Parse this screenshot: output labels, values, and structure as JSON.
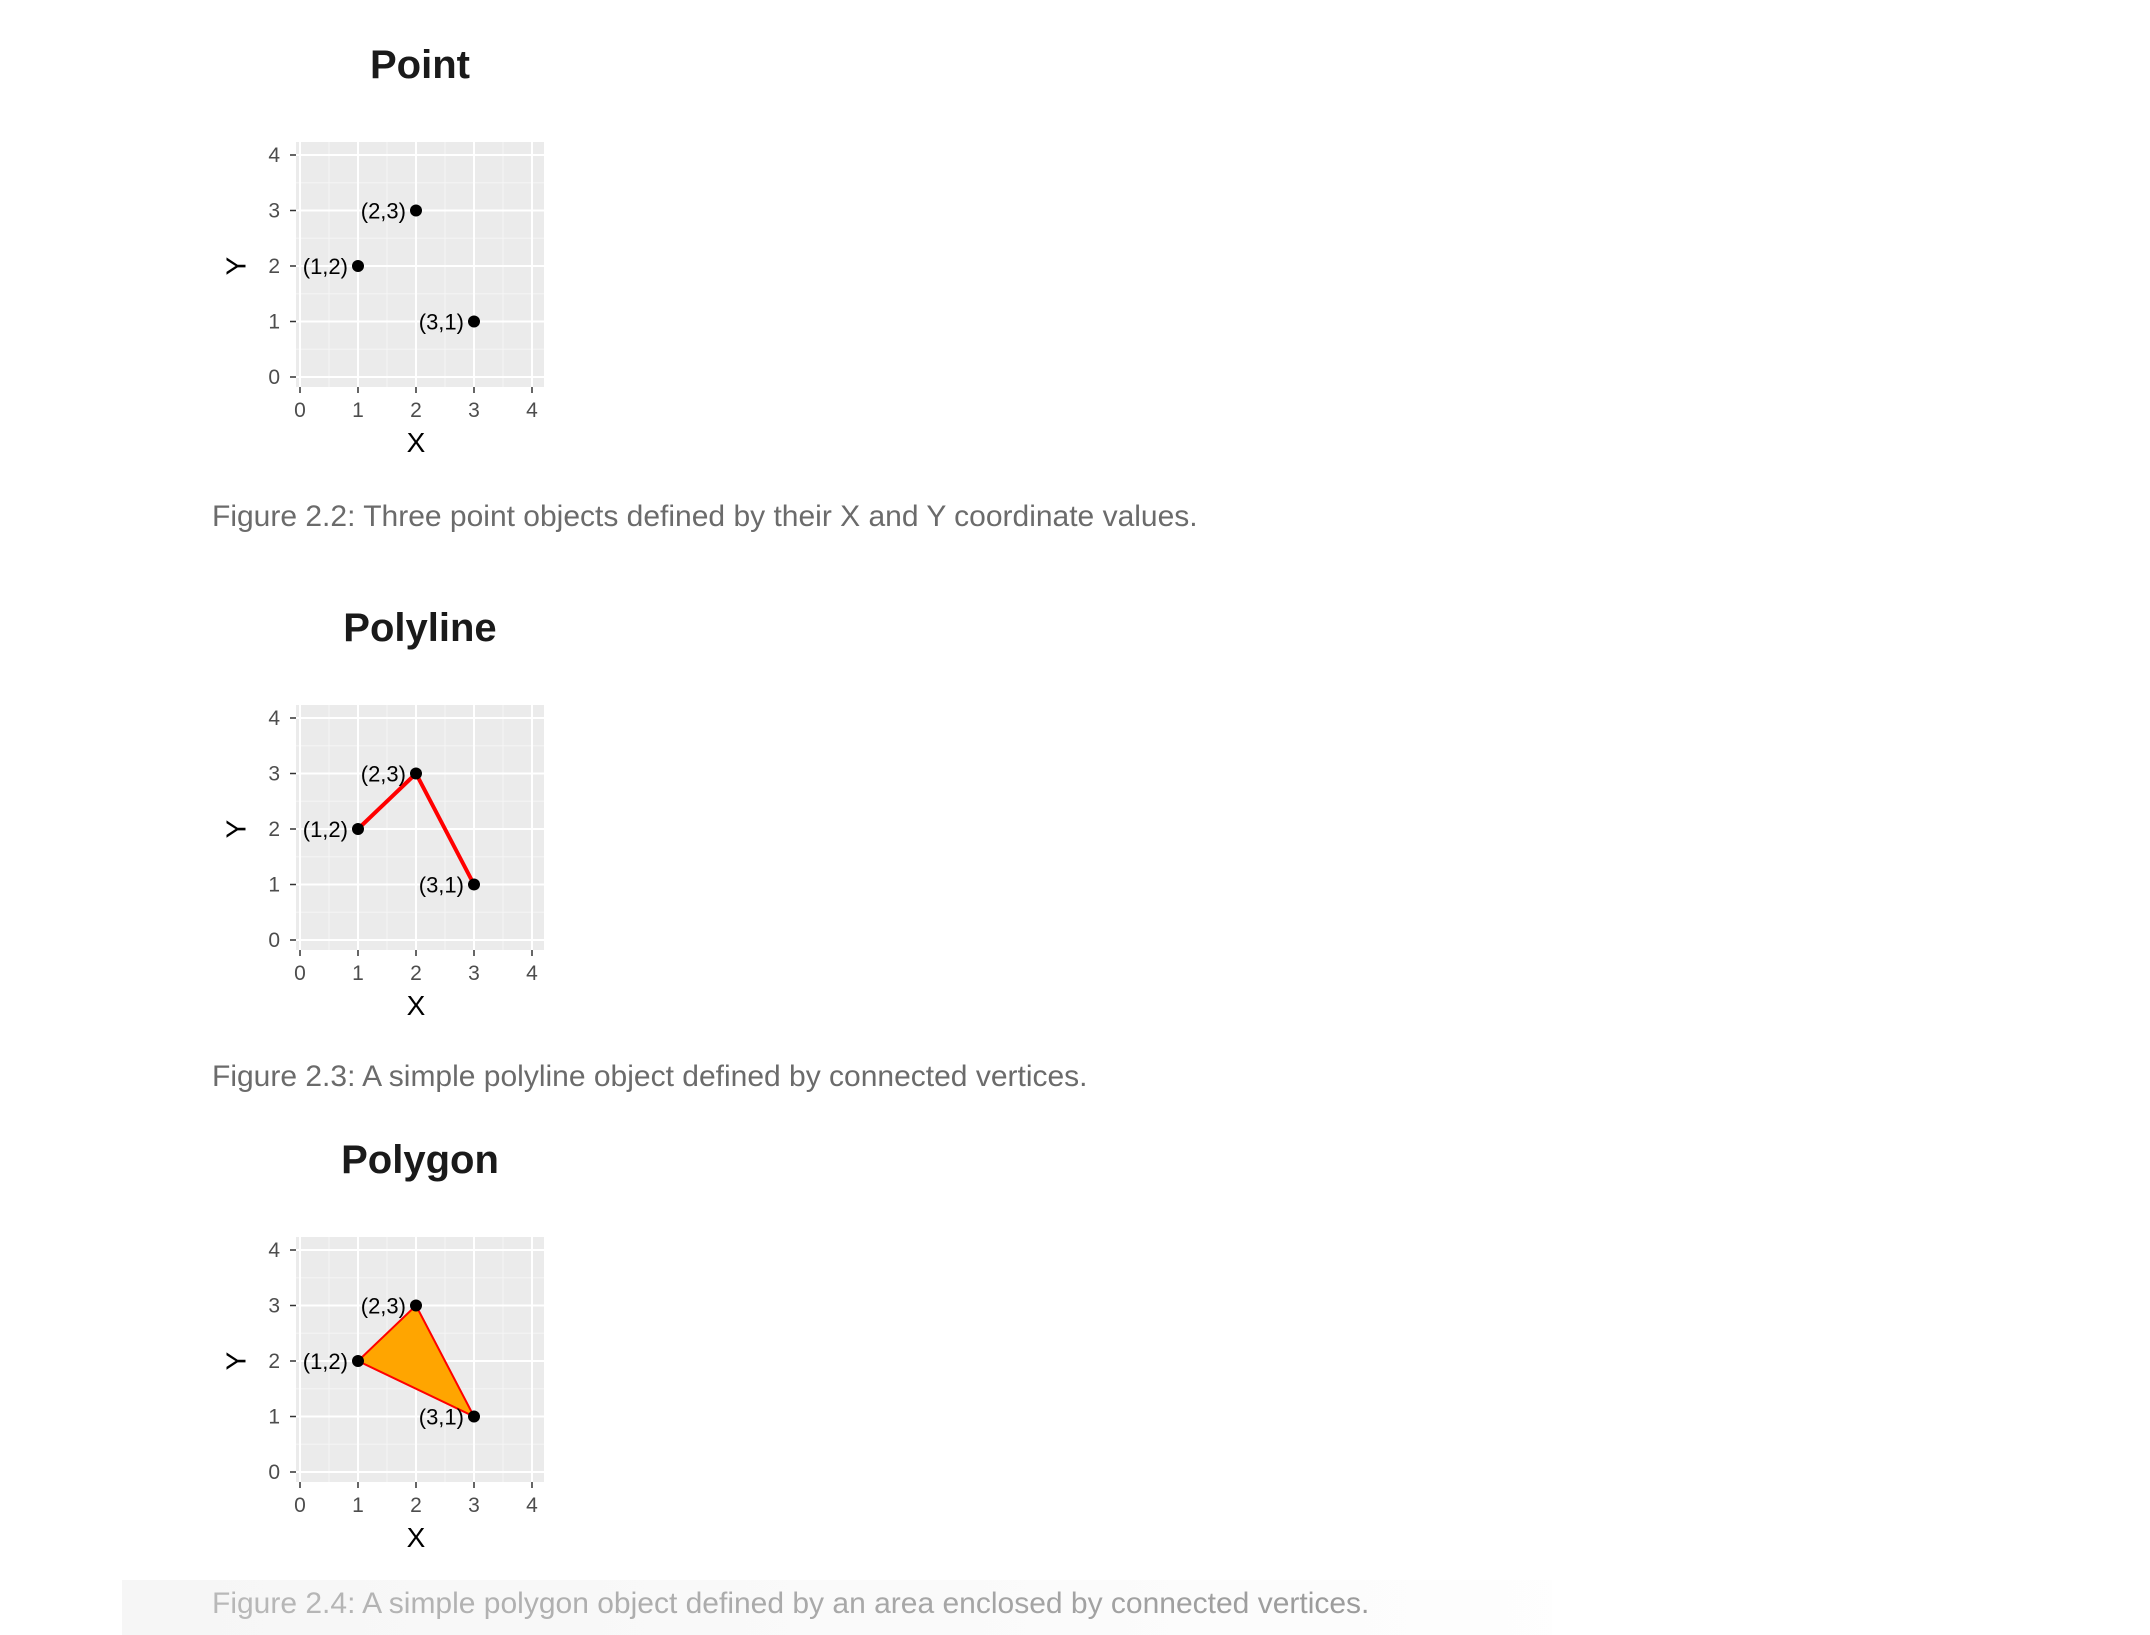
{
  "chart_data": [
    {
      "type": "scatter",
      "title": "Point",
      "xlabel": "X",
      "ylabel": "Y",
      "xlim": [
        0,
        4
      ],
      "ylim": [
        0,
        4
      ],
      "xticks": [
        "0",
        "1",
        "2",
        "3",
        "4"
      ],
      "yticks": [
        "0",
        "1",
        "2",
        "3",
        "4"
      ],
      "grid": true,
      "points": [
        {
          "x": 1,
          "y": 2,
          "label": "(1,2)"
        },
        {
          "x": 2,
          "y": 3,
          "label": "(2,3)"
        },
        {
          "x": 3,
          "y": 1,
          "label": "(3,1)"
        }
      ],
      "point_color": "#000000",
      "caption": "Figure 2.2: Three point objects defined by their X and Y coordinate values."
    },
    {
      "type": "line",
      "title": "Polyline",
      "xlabel": "X",
      "ylabel": "Y",
      "xlim": [
        0,
        4
      ],
      "ylim": [
        0,
        4
      ],
      "xticks": [
        "0",
        "1",
        "2",
        "3",
        "4"
      ],
      "yticks": [
        "0",
        "1",
        "2",
        "3",
        "4"
      ],
      "grid": true,
      "points": [
        {
          "x": 1,
          "y": 2,
          "label": "(1,2)"
        },
        {
          "x": 2,
          "y": 3,
          "label": "(2,3)"
        },
        {
          "x": 3,
          "y": 1,
          "label": "(3,1)"
        }
      ],
      "point_color": "#000000",
      "line_color": "#ff0000",
      "caption": "Figure 2.3: A simple polyline object defined by connected vertices."
    },
    {
      "type": "area",
      "title": "Polygon",
      "xlabel": "X",
      "ylabel": "Y",
      "xlim": [
        0,
        4
      ],
      "ylim": [
        0,
        4
      ],
      "xticks": [
        "0",
        "1",
        "2",
        "3",
        "4"
      ],
      "yticks": [
        "0",
        "1",
        "2",
        "3",
        "4"
      ],
      "grid": true,
      "points": [
        {
          "x": 1,
          "y": 2,
          "label": "(1,2)"
        },
        {
          "x": 2,
          "y": 3,
          "label": "(2,3)"
        },
        {
          "x": 3,
          "y": 1,
          "label": "(3,1)"
        }
      ],
      "point_color": "#000000",
      "line_color": "#ff0000",
      "fill_color": "#ffa500",
      "caption": "Figure 2.4: A simple polygon object defined by an area enclosed by connected vertices."
    }
  ]
}
